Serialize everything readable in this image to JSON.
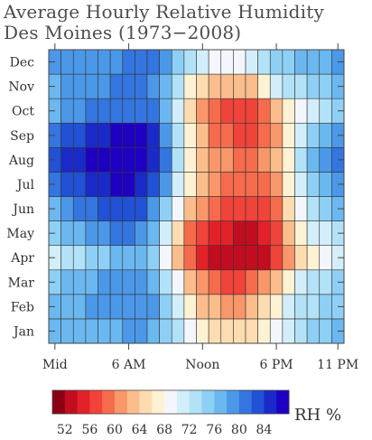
{
  "chart_data": {
    "type": "heatmap",
    "title": "Average Hourly Relative Humidity",
    "subtitle": "Des Moines (1973−2008)",
    "xlabel": "",
    "ylabel": "",
    "x_ticks": [
      {
        "hour": 0,
        "label": "Mid"
      },
      {
        "hour": 6,
        "label": "6 AM"
      },
      {
        "hour": 12,
        "label": "Noon"
      },
      {
        "hour": 18,
        "label": "6 PM"
      },
      {
        "hour": 23,
        "label": "11 PM"
      }
    ],
    "x": [
      0,
      1,
      2,
      3,
      4,
      5,
      6,
      7,
      8,
      9,
      10,
      11,
      12,
      13,
      14,
      15,
      16,
      17,
      18,
      19,
      20,
      21,
      22,
      23
    ],
    "y": [
      "Jan",
      "Feb",
      "Mar",
      "Apr",
      "May",
      "Jun",
      "Jul",
      "Aug",
      "Sep",
      "Oct",
      "Nov",
      "Dec"
    ],
    "values": [
      [
        76,
        76,
        77,
        77,
        77,
        77,
        78,
        78,
        77,
        75,
        72,
        68,
        66,
        65,
        64,
        64,
        65,
        67,
        69,
        71,
        73,
        74,
        75,
        76
      ],
      [
        76,
        76,
        77,
        78,
        78,
        78,
        79,
        79,
        78,
        75,
        71,
        66,
        63,
        62,
        61,
        61,
        62,
        64,
        67,
        70,
        72,
        73,
        74,
        75
      ],
      [
        75,
        76,
        77,
        77,
        78,
        78,
        79,
        79,
        77,
        73,
        68,
        63,
        60,
        58,
        57,
        57,
        58,
        60,
        63,
        67,
        70,
        72,
        73,
        74
      ],
      [
        71,
        72,
        73,
        74,
        75,
        76,
        77,
        77,
        74,
        69,
        63,
        58,
        55,
        53,
        52,
        52,
        52,
        53,
        56,
        61,
        65,
        67,
        69,
        70
      ],
      [
        74,
        76,
        77,
        78,
        79,
        80,
        80,
        79,
        76,
        70,
        64,
        59,
        56,
        55,
        54,
        53,
        53,
        54,
        57,
        62,
        67,
        70,
        71,
        73
      ],
      [
        77,
        79,
        80,
        81,
        82,
        83,
        83,
        82,
        79,
        74,
        68,
        63,
        60,
        58,
        57,
        56,
        56,
        57,
        59,
        64,
        69,
        72,
        74,
        76
      ],
      [
        80,
        82,
        83,
        84,
        85,
        86,
        86,
        85,
        83,
        78,
        71,
        66,
        62,
        60,
        59,
        58,
        58,
        59,
        61,
        66,
        71,
        75,
        77,
        79
      ],
      [
        82,
        84,
        85,
        86,
        87,
        87,
        88,
        87,
        85,
        80,
        73,
        67,
        63,
        61,
        60,
        59,
        59,
        60,
        62,
        67,
        72,
        76,
        78,
        80
      ],
      [
        80,
        82,
        83,
        84,
        85,
        86,
        86,
        86,
        84,
        79,
        72,
        66,
        62,
        59,
        58,
        57,
        57,
        58,
        61,
        66,
        71,
        74,
        76,
        78
      ],
      [
        76,
        78,
        79,
        80,
        80,
        81,
        81,
        81,
        80,
        76,
        70,
        64,
        60,
        58,
        57,
        56,
        56,
        58,
        62,
        66,
        69,
        71,
        73,
        75
      ],
      [
        77,
        78,
        78,
        79,
        79,
        80,
        80,
        80,
        79,
        76,
        72,
        67,
        64,
        63,
        62,
        62,
        63,
        66,
        70,
        72,
        73,
        74,
        75,
        76
      ],
      [
        78,
        78,
        78,
        79,
        79,
        79,
        80,
        80,
        80,
        78,
        75,
        72,
        70,
        69,
        69,
        69,
        70,
        72,
        74,
        75,
        76,
        76,
        77,
        78
      ]
    ],
    "colorbar": {
      "label": "RH %",
      "tick_labels": [
        "52",
        "56",
        "60",
        "64",
        "68",
        "72",
        "76",
        "80",
        "84"
      ],
      "colors": [
        "#8b0015",
        "#c20d20",
        "#e32129",
        "#f0433a",
        "#f66b4c",
        "#f9966a",
        "#fbbd8c",
        "#fcdcb0",
        "#fef2d4",
        "#f3f7fd",
        "#d3eefb",
        "#b2e2f8",
        "#8ed0f5",
        "#6bb8f0",
        "#4b98e8",
        "#3475df",
        "#2151d4",
        "#1a2ac9",
        "#1d00c2"
      ],
      "min": 50,
      "max": 88
    },
    "grid": true
  }
}
